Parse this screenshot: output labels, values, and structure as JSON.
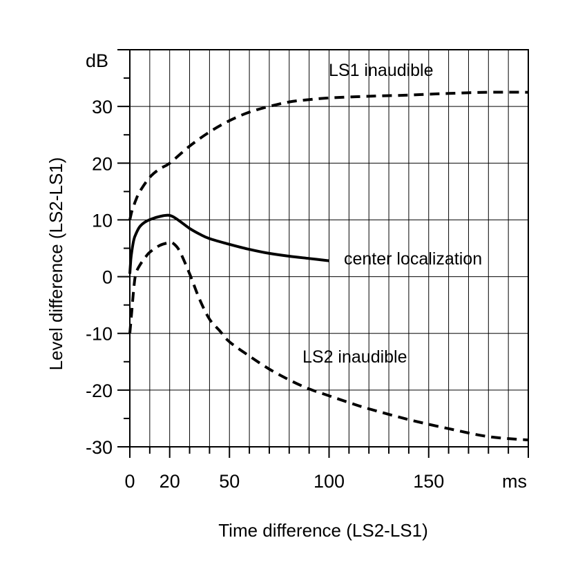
{
  "chart_data": {
    "type": "line",
    "title": "",
    "xlabel": "Time difference (LS2-LS1)",
    "ylabel": "Level difference (LS2-LS1)",
    "x_unit": "ms",
    "y_unit": "dB",
    "xlim": [
      0,
      200
    ],
    "ylim": [
      -30,
      40
    ],
    "x_ticks": [
      {
        "value": 0,
        "label": "0"
      },
      {
        "value": 20,
        "label": "20"
      },
      {
        "value": 50,
        "label": "50"
      },
      {
        "value": 100,
        "label": "100"
      },
      {
        "value": 150,
        "label": "150"
      }
    ],
    "y_ticks": [
      {
        "value": -30,
        "label": "-30"
      },
      {
        "value": -20,
        "label": "-20"
      },
      {
        "value": -10,
        "label": "-10"
      },
      {
        "value": 0,
        "label": "0"
      },
      {
        "value": 10,
        "label": "10"
      },
      {
        "value": 20,
        "label": "20"
      },
      {
        "value": 30,
        "label": "30"
      }
    ],
    "grid": true,
    "x_grid_step": 10,
    "y_grid_step": 10,
    "legend": "none",
    "series": [
      {
        "name": "LS1 inaudible",
        "line_style": "dashed",
        "x": [
          0,
          1,
          2,
          3,
          5,
          10,
          15,
          20,
          30,
          40,
          50,
          60,
          70,
          80,
          90,
          100,
          120,
          140,
          160,
          180,
          200
        ],
        "y": [
          10,
          11.5,
          12.5,
          13.5,
          15,
          17.5,
          19,
          20,
          23,
          25.5,
          27.5,
          29,
          30,
          30.8,
          31.2,
          31.5,
          31.8,
          32,
          32.3,
          32.5,
          32.5
        ]
      },
      {
        "name": "center localization",
        "line_style": "solid",
        "x": [
          0,
          0.5,
          1,
          2,
          3,
          5,
          8,
          12,
          15,
          18,
          20,
          22,
          25,
          30,
          35,
          40,
          50,
          60,
          70,
          80,
          90,
          100
        ],
        "y": [
          0.5,
          3,
          4.5,
          6.5,
          7.5,
          8.8,
          9.7,
          10.3,
          10.6,
          10.8,
          10.8,
          10.5,
          9.8,
          8.5,
          7.5,
          6.7,
          5.7,
          4.8,
          4.1,
          3.6,
          3.2,
          2.8
        ]
      },
      {
        "name": "LS2 inaudible",
        "line_style": "dashed",
        "x": [
          0,
          1,
          2,
          3,
          5,
          8,
          10,
          15,
          20,
          22,
          25,
          30,
          35,
          40,
          45,
          50,
          60,
          70,
          80,
          90,
          100,
          110,
          120,
          140,
          160,
          180,
          200
        ],
        "y": [
          -10,
          -6,
          -2,
          0.5,
          2,
          3.5,
          4.3,
          5.5,
          6,
          5.8,
          4.5,
          0.5,
          -4,
          -7.5,
          -9.5,
          -11.5,
          -14,
          -16.3,
          -18.2,
          -19.8,
          -21,
          -22.2,
          -23.3,
          -25.2,
          -26.8,
          -28.2,
          -28.8
        ]
      }
    ],
    "annotations": [
      {
        "text": "dB"
      },
      {
        "text": "ms"
      },
      {
        "text": "LS1 inaudible"
      },
      {
        "text": "center localization"
      },
      {
        "text": "LS2 inaudible"
      }
    ]
  }
}
